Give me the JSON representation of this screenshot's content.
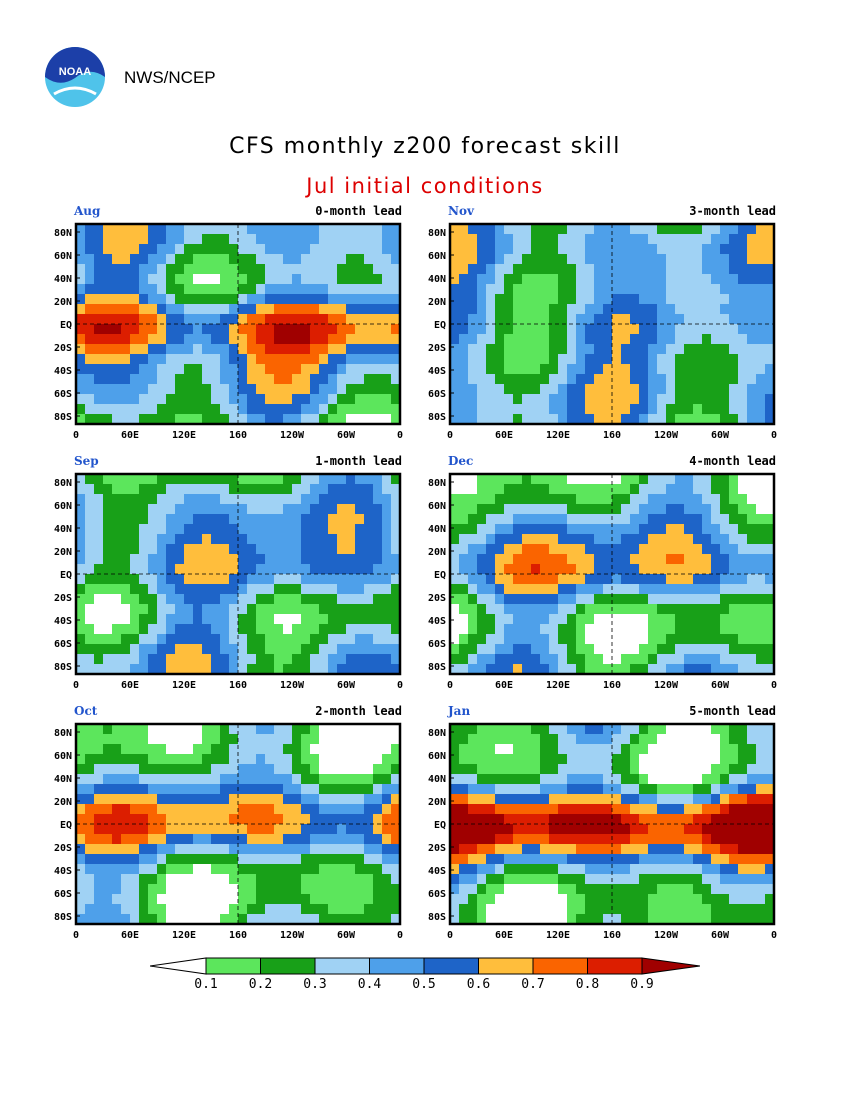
{
  "header": {
    "logo_text": "NOAA",
    "org": "NWS/NCEP",
    "title": "CFS monthly z200 forecast skill",
    "subtitle": "Jul initial conditions"
  },
  "axes": {
    "lat_labels": [
      "80N",
      "60N",
      "40N",
      "20N",
      "EQ",
      "20S",
      "40S",
      "60S",
      "80S"
    ],
    "lon_labels": [
      "0",
      "60E",
      "120E",
      "160",
      "120W",
      "60W",
      "0"
    ]
  },
  "panels": [
    {
      "month": "Aug",
      "lead": "0-month lead"
    },
    {
      "month": "Nov",
      "lead": "3-month lead"
    },
    {
      "month": "Sep",
      "lead": "1-month lead"
    },
    {
      "month": "Dec",
      "lead": "4-month lead"
    },
    {
      "month": "Oct",
      "lead": "2-month lead"
    },
    {
      "month": "Jan",
      "lead": "5-month lead"
    }
  ],
  "colorbar": {
    "labels": [
      "0.1",
      "0.2",
      "0.3",
      "0.4",
      "0.5",
      "0.6",
      "0.7",
      "0.8",
      "0.9"
    ],
    "colors": [
      "#ffffff",
      "#5ce65c",
      "#18a018",
      "#a0d2f4",
      "#4ea0ea",
      "#1e64c8",
      "#ffbe3c",
      "#fa6400",
      "#dc1e00",
      "#a00000"
    ]
  },
  "colors": {
    "title": "#000000",
    "subtitle": "#dd0000",
    "month_label": "#2255cc"
  }
}
